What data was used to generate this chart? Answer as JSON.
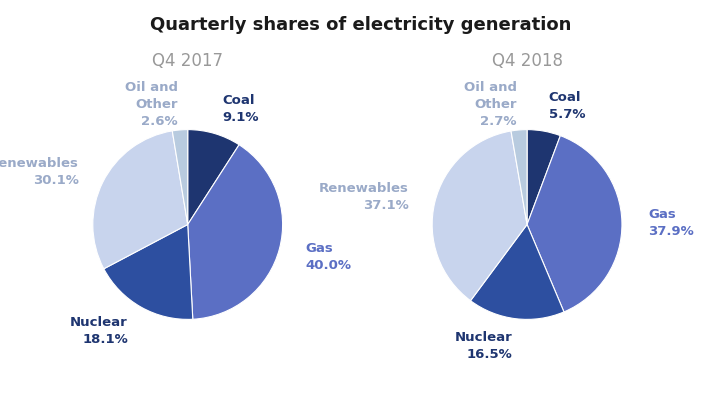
{
  "title": "Quarterly shares of electricity generation",
  "title_fontsize": 13,
  "title_color": "#1a1a1a",
  "pie1_title": "Q4 2017",
  "pie2_title": "Q4 2018",
  "pie_title_color": "#999999",
  "pie_title_fontsize": 12,
  "labels": [
    "Coal",
    "Gas",
    "Nuclear",
    "Renewables",
    "Oil and\nOther"
  ],
  "label_keys": [
    "Coal",
    "Gas",
    "Nuclear",
    "Renewables",
    "Oil and Other"
  ],
  "values_2017": [
    9.1,
    40.0,
    18.1,
    30.1,
    2.6
  ],
  "values_2018": [
    5.7,
    37.9,
    16.5,
    37.1,
    2.7
  ],
  "slice_colors": [
    "#1e3570",
    "#5b6fc4",
    "#2d4fa0",
    "#c8d4ed",
    "#b8cbdf"
  ],
  "label_colors": {
    "Coal": "#1e3570",
    "Gas": "#5b6fc4",
    "Nuclear": "#1e3570",
    "Renewables": "#9aaac8",
    "Oil and Other": "#9aaac8"
  },
  "label_fontsize": 9.5,
  "pct_fontsize": 9.5,
  "background_color": "#ffffff"
}
